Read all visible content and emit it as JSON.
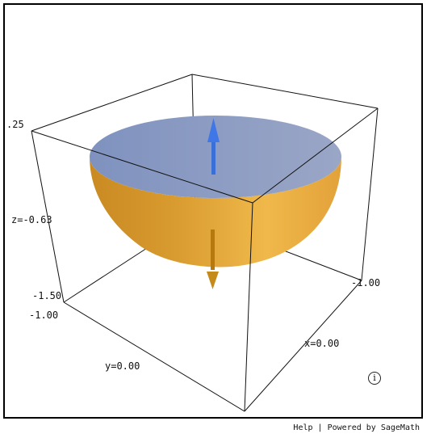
{
  "viewer": {
    "axis_labels": {
      "z_max": ".25",
      "z_mid": "z=-0.63",
      "z_min": "-1.50",
      "y_min": "-1.00",
      "y_mid": "y=0.00",
      "x_mid": "x=0.00",
      "x_min": "-1.00"
    },
    "info_symbol": "i",
    "colors": {
      "disk_fill": "#8a9cc4",
      "bowl_fill": "#e8aa3a",
      "arrow_up": "#3a6fd8",
      "arrow_down": "#b7780e",
      "box_lines": "#111111"
    },
    "icons": {
      "info": "info-circle-icon",
      "arrow_up": "arrow-up-icon",
      "arrow_down": "arrow-down-icon"
    }
  },
  "footer": {
    "help_label": "Help",
    "separator": "|",
    "powered_label": "Powered by SageMath"
  }
}
